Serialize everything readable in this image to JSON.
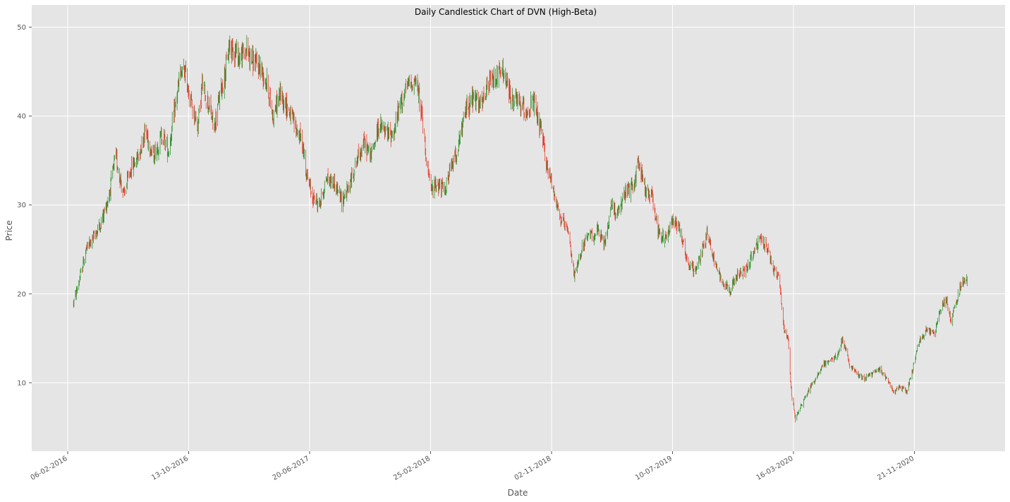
{
  "chart_data": {
    "type": "candlestick",
    "title": "Daily Candlestick Chart of DVN (High-Beta)",
    "xlabel": "Date",
    "ylabel": "Price",
    "ylim": [
      2.3,
      52.5
    ],
    "y_ticks": [
      10,
      20,
      30,
      40,
      50
    ],
    "x_ticks": [
      "06-02-2016",
      "13-10-2016",
      "20-06-2017",
      "25-02-2018",
      "02-11-2018",
      "10-07-2019",
      "16-03-2020",
      "21-11-2020"
    ],
    "grid": true,
    "colors": {
      "up": "#1a8a1a",
      "down": "#e8301e",
      "background": "#e5e5e5",
      "grid": "#ffffff"
    },
    "date_range": [
      "2016-02-06",
      "2021-03-10"
    ],
    "series": [
      {
        "values": [
          [
            "2016-02-18",
            19.0
          ],
          [
            "2016-03-01",
            21.5
          ],
          [
            "2016-03-15",
            25.0
          ],
          [
            "2016-04-01",
            26.5
          ],
          [
            "2016-04-15",
            28.0
          ],
          [
            "2016-05-01",
            31.0
          ],
          [
            "2016-05-15",
            35.5
          ],
          [
            "2016-06-01",
            31.0
          ],
          [
            "2016-06-15",
            34.0
          ],
          [
            "2016-07-01",
            35.5
          ],
          [
            "2016-07-15",
            38.5
          ],
          [
            "2016-08-01",
            35.5
          ],
          [
            "2016-08-20",
            38.0
          ],
          [
            "2016-09-01",
            36.0
          ],
          [
            "2016-09-15",
            41.0
          ],
          [
            "2016-09-25",
            44.5
          ],
          [
            "2016-10-05",
            45.0
          ],
          [
            "2016-10-20",
            41.0
          ],
          [
            "2016-11-01",
            39.0
          ],
          [
            "2016-11-10",
            43.5
          ],
          [
            "2016-11-25",
            41.0
          ],
          [
            "2016-12-05",
            38.5
          ],
          [
            "2016-12-15",
            42.0
          ],
          [
            "2016-12-28",
            45.0
          ],
          [
            "2017-01-05",
            48.0
          ],
          [
            "2017-01-15",
            47.5
          ],
          [
            "2017-01-28",
            46.5
          ],
          [
            "2017-02-10",
            47.5
          ],
          [
            "2017-02-25",
            46.0
          ],
          [
            "2017-03-10",
            45.5
          ],
          [
            "2017-03-25",
            43.5
          ],
          [
            "2017-04-05",
            40.0
          ],
          [
            "2017-04-20",
            42.5
          ],
          [
            "2017-05-05",
            41.0
          ],
          [
            "2017-05-20",
            39.0
          ],
          [
            "2017-06-05",
            37.0
          ],
          [
            "2017-06-15",
            33.0
          ],
          [
            "2017-06-25",
            31.0
          ],
          [
            "2017-07-10",
            30.0
          ],
          [
            "2017-07-25",
            33.0
          ],
          [
            "2017-08-10",
            32.5
          ],
          [
            "2017-08-25",
            30.5
          ],
          [
            "2017-09-10",
            32.0
          ],
          [
            "2017-09-25",
            35.0
          ],
          [
            "2017-10-10",
            37.0
          ],
          [
            "2017-10-25",
            35.5
          ],
          [
            "2017-11-10",
            39.0
          ],
          [
            "2017-11-25",
            38.0
          ],
          [
            "2017-12-10",
            38.0
          ],
          [
            "2017-12-25",
            41.5
          ],
          [
            "2018-01-10",
            43.5
          ],
          [
            "2018-01-25",
            44.0
          ],
          [
            "2018-02-05",
            41.0
          ],
          [
            "2018-02-15",
            36.0
          ],
          [
            "2018-02-25",
            31.5
          ],
          [
            "2018-03-10",
            32.5
          ],
          [
            "2018-03-25",
            31.5
          ],
          [
            "2018-04-10",
            34.5
          ],
          [
            "2018-04-25",
            37.0
          ],
          [
            "2018-05-10",
            41.0
          ],
          [
            "2018-05-25",
            42.0
          ],
          [
            "2018-06-10",
            41.0
          ],
          [
            "2018-06-25",
            43.5
          ],
          [
            "2018-07-10",
            44.5
          ],
          [
            "2018-07-25",
            45.0
          ],
          [
            "2018-08-10",
            42.0
          ],
          [
            "2018-08-25",
            41.5
          ],
          [
            "2018-09-10",
            40.5
          ],
          [
            "2018-09-25",
            41.5
          ],
          [
            "2018-10-10",
            38.5
          ],
          [
            "2018-10-25",
            34.0
          ],
          [
            "2018-11-05",
            32.0
          ],
          [
            "2018-11-20",
            28.5
          ],
          [
            "2018-12-05",
            27.0
          ],
          [
            "2018-12-20",
            22.0
          ],
          [
            "2019-01-05",
            25.5
          ],
          [
            "2019-01-20",
            26.5
          ],
          [
            "2019-02-05",
            27.0
          ],
          [
            "2019-02-20",
            25.5
          ],
          [
            "2019-03-05",
            30.0
          ],
          [
            "2019-03-20",
            29.0
          ],
          [
            "2019-04-05",
            31.5
          ],
          [
            "2019-04-20",
            32.0
          ],
          [
            "2019-05-01",
            35.0
          ],
          [
            "2019-05-15",
            31.5
          ],
          [
            "2019-05-30",
            31.0
          ],
          [
            "2019-06-10",
            27.0
          ],
          [
            "2019-06-25",
            26.0
          ],
          [
            "2019-07-10",
            28.5
          ],
          [
            "2019-07-25",
            27.5
          ],
          [
            "2019-08-10",
            23.5
          ],
          [
            "2019-08-25",
            22.5
          ],
          [
            "2019-09-10",
            25.0
          ],
          [
            "2019-09-20",
            27.0
          ],
          [
            "2019-10-05",
            23.5
          ],
          [
            "2019-10-20",
            21.5
          ],
          [
            "2019-11-05",
            20.5
          ],
          [
            "2019-11-20",
            22.0
          ],
          [
            "2019-12-05",
            22.5
          ],
          [
            "2019-12-20",
            24.0
          ],
          [
            "2020-01-05",
            26.0
          ],
          [
            "2020-01-20",
            25.5
          ],
          [
            "2020-02-05",
            22.5
          ],
          [
            "2020-02-15",
            22.0
          ],
          [
            "2020-02-25",
            16.0
          ],
          [
            "2020-03-05",
            15.0
          ],
          [
            "2020-03-12",
            8.5
          ],
          [
            "2020-03-20",
            6.0
          ],
          [
            "2020-04-01",
            7.5
          ],
          [
            "2020-04-15",
            9.0
          ],
          [
            "2020-05-01",
            10.5
          ],
          [
            "2020-05-15",
            12.0
          ],
          [
            "2020-06-01",
            12.5
          ],
          [
            "2020-06-15",
            13.0
          ],
          [
            "2020-06-25",
            15.0
          ],
          [
            "2020-07-10",
            12.0
          ],
          [
            "2020-07-25",
            11.0
          ],
          [
            "2020-08-10",
            10.5
          ],
          [
            "2020-08-25",
            11.0
          ],
          [
            "2020-09-10",
            11.5
          ],
          [
            "2020-09-25",
            10.5
          ],
          [
            "2020-10-10",
            9.0
          ],
          [
            "2020-10-25",
            9.5
          ],
          [
            "2020-11-05",
            9.0
          ],
          [
            "2020-11-15",
            11.0
          ],
          [
            "2020-11-30",
            14.5
          ],
          [
            "2020-12-15",
            16.0
          ],
          [
            "2021-01-01",
            15.5
          ],
          [
            "2021-01-15",
            18.5
          ],
          [
            "2021-01-25",
            19.5
          ],
          [
            "2021-02-05",
            17.0
          ],
          [
            "2021-02-15",
            19.0
          ],
          [
            "2021-02-25",
            21.0
          ],
          [
            "2021-03-10",
            21.5
          ]
        ]
      }
    ]
  }
}
